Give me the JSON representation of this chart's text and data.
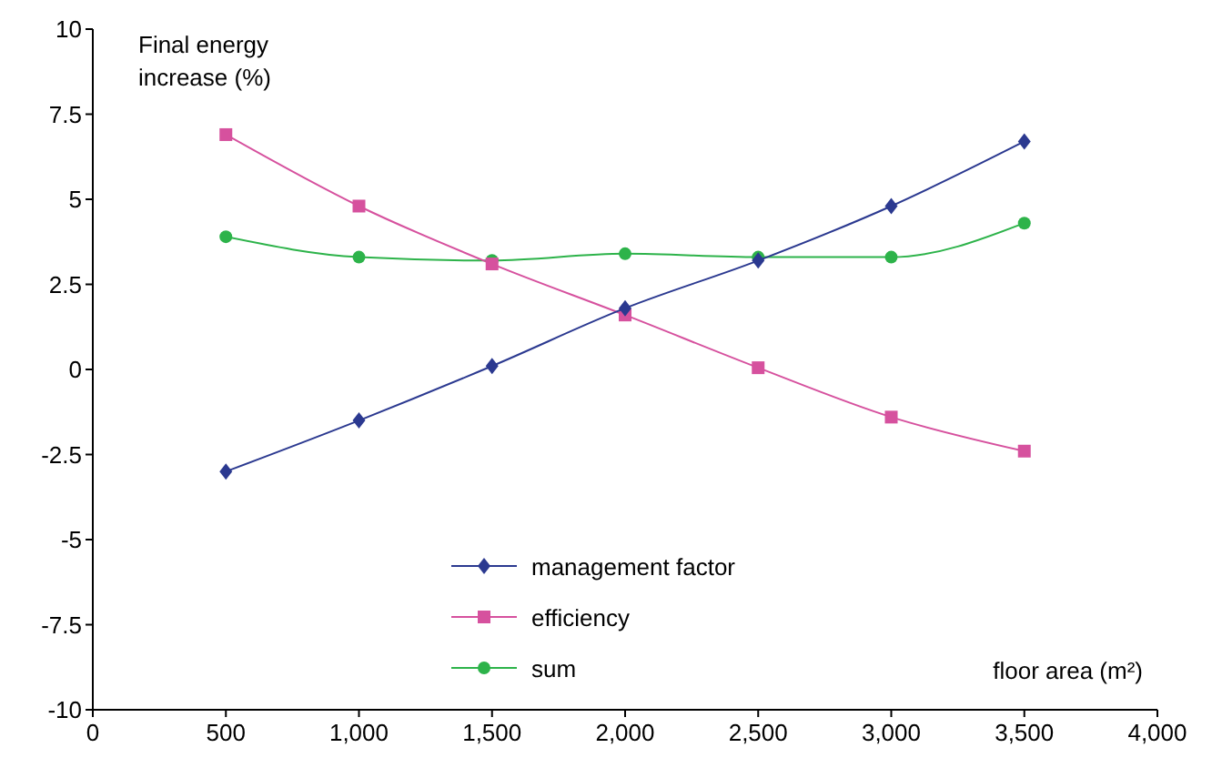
{
  "chart_data": {
    "type": "line",
    "xlabel": "floor area (m²)",
    "ylabel": "Final energy increase (%)",
    "x": [
      500,
      1000,
      1500,
      2000,
      2500,
      3000,
      3500
    ],
    "xlim": [
      0,
      4000
    ],
    "xticks": [
      0,
      500,
      {
        "value": 1000,
        "label": "1,000"
      },
      {
        "value": 1500,
        "label": "1,500"
      },
      {
        "value": 2000,
        "label": "2,000"
      },
      {
        "value": 2500,
        "label": "2,500"
      },
      {
        "value": 3000,
        "label": "3,000"
      },
      {
        "value": 3500,
        "label": "3,500"
      },
      {
        "value": 4000,
        "label": "4,000"
      }
    ],
    "ylim": [
      -10,
      10
    ],
    "yticks": [
      -10,
      -7.5,
      -5,
      -2.5,
      0,
      2.5,
      5,
      7.5,
      10
    ],
    "grid": false,
    "legend": "bottom",
    "line_style": "solid",
    "series": [
      {
        "name": "management factor",
        "color": "#2b3990",
        "marker": "diamond",
        "values": [
          -3.0,
          -1.5,
          0.1,
          1.8,
          3.2,
          4.8,
          6.7
        ]
      },
      {
        "name": "efficiency",
        "color": "#d6519e",
        "marker": "square",
        "values": [
          6.9,
          4.8,
          3.1,
          1.6,
          0.05,
          -1.4,
          -2.4
        ]
      },
      {
        "name": "sum",
        "color": "#2db34a",
        "marker": "circle",
        "values": [
          3.9,
          3.3,
          3.2,
          3.4,
          3.3,
          3.3,
          4.3
        ]
      }
    ]
  }
}
